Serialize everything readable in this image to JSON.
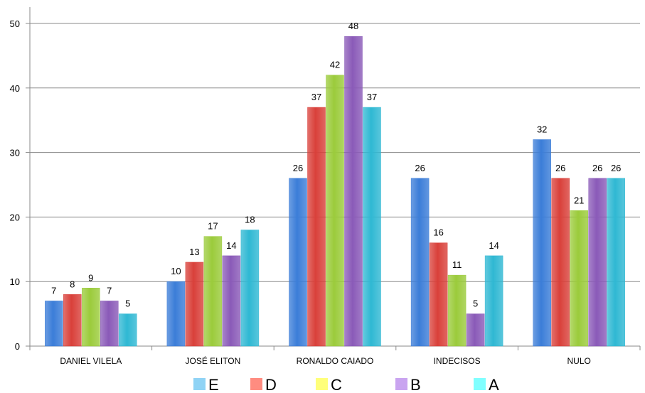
{
  "chart_data": {
    "type": "bar",
    "categories": [
      "DANIEL VILELA",
      "JOSÉ ELITON",
      "RONALDO CAIADO",
      "INDECISOS",
      "NULO"
    ],
    "series": [
      {
        "name": "E",
        "color": "#3B7DD8",
        "values": [
          7,
          10,
          26,
          26,
          32
        ]
      },
      {
        "name": "D",
        "color": "#D9403A",
        "values": [
          8,
          13,
          37,
          16,
          26
        ]
      },
      {
        "name": "C",
        "color": "#9BCB3B",
        "values": [
          9,
          17,
          42,
          11,
          21
        ]
      },
      {
        "name": "B",
        "color": "#8A5AB8",
        "values": [
          7,
          14,
          48,
          5,
          26
        ]
      },
      {
        "name": "A",
        "color": "#2FB8D3",
        "values": [
          5,
          18,
          37,
          14,
          26
        ]
      }
    ],
    "legend_colors": [
      "#8FD3F5",
      "#FF8C80",
      "#FFFF7A",
      "#C9A4F0",
      "#80FFFF"
    ],
    "ylim": [
      0,
      50
    ],
    "yticks": [
      0,
      10,
      20,
      30,
      40,
      50
    ],
    "grid": true,
    "legend": "bottom",
    "data_labels": true
  }
}
